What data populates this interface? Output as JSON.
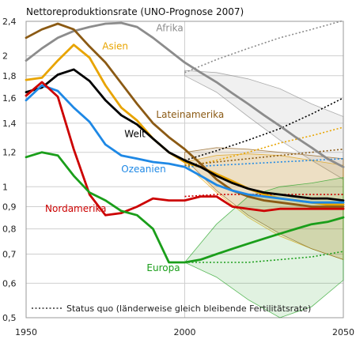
{
  "chart_data": {
    "type": "line",
    "title": "Nettoreproduktionsrate (UNO-Prognose 2007)",
    "xlabel": "",
    "ylabel": "",
    "y_scale": "log",
    "xlim": [
      1950,
      2050
    ],
    "ylim": [
      0.5,
      2.4
    ],
    "grid": true,
    "x_ticks": [
      1950,
      2000,
      2050
    ],
    "x_tick_labels": [
      "1950",
      "2000",
      "2050"
    ],
    "y_ticks": [
      0.5,
      0.6,
      0.7,
      0.8,
      0.9,
      1,
      1.2,
      1.4,
      1.6,
      1.8,
      2,
      2.4
    ],
    "y_tick_labels": [
      "0,5",
      "0,6",
      "0,7",
      "0,8",
      "0,9",
      "1",
      "1,2",
      "1,4",
      "1,6",
      "1,8",
      "2",
      "2,4"
    ],
    "legend_text": "Status quo (länderweise gleich bleibende Fertilitätsrate)",
    "series": [
      {
        "name": "Afrika",
        "color": "#8c8c8c",
        "x": [
          1950,
          1955,
          1960,
          1965,
          1970,
          1975,
          1980,
          1985,
          1990,
          1995,
          2000,
          2005,
          2010,
          2015,
          2020,
          2025,
          2030,
          2035,
          2040,
          2045,
          2050
        ],
        "y": [
          1.95,
          2.08,
          2.2,
          2.28,
          2.33,
          2.37,
          2.38,
          2.33,
          2.2,
          2.06,
          1.93,
          1.83,
          1.74,
          1.64,
          1.55,
          1.46,
          1.38,
          1.3,
          1.23,
          1.16,
          1.11
        ],
        "status_quo": {
          "x": [
            2000,
            2010,
            2020,
            2030,
            2040,
            2050
          ],
          "y": [
            1.83,
            1.96,
            2.08,
            2.2,
            2.3,
            2.41
          ]
        },
        "band": {
          "x": [
            2000,
            2010,
            2020,
            2030,
            2040,
            2050
          ],
          "high": [
            1.85,
            1.83,
            1.77,
            1.68,
            1.55,
            1.45
          ],
          "low": [
            1.8,
            1.65,
            1.45,
            1.28,
            1.15,
            1.04
          ]
        }
      },
      {
        "name": "Asien",
        "color": "#e8a400",
        "x": [
          1950,
          1955,
          1960,
          1965,
          1970,
          1975,
          1980,
          1985,
          1990,
          1995,
          2000,
          2005,
          2010,
          2015,
          2020,
          2025,
          2030,
          2035,
          2040,
          2045,
          2050
        ],
        "y": [
          1.76,
          1.78,
          1.95,
          2.12,
          1.98,
          1.71,
          1.52,
          1.42,
          1.29,
          1.2,
          1.14,
          1.11,
          1.07,
          1.03,
          0.99,
          0.96,
          0.94,
          0.93,
          0.92,
          0.91,
          0.91
        ],
        "status_quo": {
          "x": [
            2000,
            2010,
            2020,
            2030,
            2040,
            2050
          ],
          "y": [
            1.11,
            1.15,
            1.2,
            1.26,
            1.31,
            1.37
          ]
        },
        "band": {
          "x": [
            2000,
            2010,
            2020,
            2030,
            2040,
            2050
          ],
          "high": [
            1.14,
            1.18,
            1.19,
            1.18,
            1.15,
            1.12
          ],
          "low": [
            1.13,
            0.97,
            0.85,
            0.77,
            0.72,
            0.68
          ]
        }
      },
      {
        "name": "Lateinamerika",
        "color": "#8b5a14",
        "x": [
          1950,
          1955,
          1960,
          1965,
          1970,
          1975,
          1980,
          1985,
          1990,
          1995,
          2000,
          2005,
          2010,
          2015,
          2020,
          2025,
          2030,
          2035,
          2040,
          2045,
          2050
        ],
        "y": [
          2.2,
          2.3,
          2.37,
          2.3,
          2.1,
          1.93,
          1.73,
          1.55,
          1.4,
          1.3,
          1.22,
          1.13,
          1.04,
          0.98,
          0.95,
          0.93,
          0.92,
          0.91,
          0.9,
          0.9,
          0.9
        ],
        "status_quo": {
          "x": [
            2000,
            2010,
            2020,
            2030,
            2040,
            2050
          ],
          "y": [
            1.12,
            1.14,
            1.16,
            1.18,
            1.2,
            1.22
          ]
        },
        "band": {
          "x": [
            2000,
            2010,
            2020,
            2030,
            2040,
            2050
          ],
          "high": [
            1.2,
            1.23,
            1.22,
            1.2,
            1.18,
            1.16
          ],
          "low": [
            1.16,
            0.98,
            0.86,
            0.78,
            0.72,
            0.68
          ]
        }
      },
      {
        "name": "Welt",
        "color": "#000000",
        "x": [
          1950,
          1955,
          1960,
          1965,
          1970,
          1975,
          1980,
          1985,
          1990,
          1995,
          2000,
          2005,
          2010,
          2015,
          2020,
          2025,
          2030,
          2035,
          2040,
          2045,
          2050
        ],
        "y": [
          1.65,
          1.69,
          1.81,
          1.86,
          1.75,
          1.58,
          1.46,
          1.39,
          1.29,
          1.2,
          1.15,
          1.11,
          1.06,
          1.02,
          0.99,
          0.97,
          0.96,
          0.95,
          0.94,
          0.94,
          0.93
        ],
        "status_quo": {
          "x": [
            2000,
            2010,
            2020,
            2030,
            2040,
            2050
          ],
          "y": [
            1.15,
            1.21,
            1.28,
            1.36,
            1.47,
            1.6
          ]
        }
      },
      {
        "name": "Ozeanien",
        "color": "#1e88e5",
        "x": [
          1950,
          1955,
          1960,
          1965,
          1970,
          1975,
          1980,
          1985,
          1990,
          1995,
          2000,
          2005,
          2010,
          2015,
          2020,
          2025,
          2030,
          2035,
          2040,
          2045,
          2050
        ],
        "y": [
          1.58,
          1.71,
          1.66,
          1.52,
          1.41,
          1.25,
          1.18,
          1.16,
          1.14,
          1.13,
          1.11,
          1.06,
          1.01,
          0.98,
          0.96,
          0.95,
          0.94,
          0.93,
          0.92,
          0.92,
          0.92
        ],
        "status_quo": {
          "x": [
            2000,
            2010,
            2020,
            2030,
            2040,
            2050
          ],
          "y": [
            1.11,
            1.12,
            1.13,
            1.14,
            1.15,
            1.16
          ]
        }
      },
      {
        "name": "Nordamerika",
        "color": "#cc0000",
        "x": [
          1950,
          1955,
          1960,
          1965,
          1970,
          1975,
          1980,
          1985,
          1990,
          1995,
          2000,
          2005,
          2010,
          2015,
          2020,
          2025,
          2030,
          2035,
          2040,
          2045,
          2050
        ],
        "y": [
          1.62,
          1.74,
          1.61,
          1.22,
          0.96,
          0.86,
          0.87,
          0.9,
          0.94,
          0.93,
          0.93,
          0.95,
          0.95,
          0.9,
          0.89,
          0.88,
          0.89,
          0.89,
          0.89,
          0.89,
          0.89
        ],
        "status_quo": {
          "x": [
            2000,
            2010,
            2020,
            2030,
            2040,
            2050
          ],
          "y": [
            0.95,
            0.96,
            0.96,
            0.96,
            0.96,
            0.96
          ]
        }
      },
      {
        "name": "Europa",
        "color": "#1a9e1a",
        "x": [
          1950,
          1955,
          1960,
          1965,
          1970,
          1975,
          1980,
          1985,
          1990,
          1995,
          2000,
          2005,
          2010,
          2015,
          2020,
          2025,
          2030,
          2035,
          2040,
          2045,
          2050
        ],
        "y": [
          1.17,
          1.2,
          1.18,
          1.06,
          0.97,
          0.93,
          0.88,
          0.86,
          0.8,
          0.67,
          0.67,
          0.68,
          0.7,
          0.72,
          0.74,
          0.76,
          0.78,
          0.8,
          0.82,
          0.83,
          0.85
        ],
        "status_quo": {
          "x": [
            2000,
            2010,
            2020,
            2030,
            2040,
            2050
          ],
          "y": [
            0.67,
            0.67,
            0.67,
            0.68,
            0.69,
            0.71
          ]
        },
        "band": {
          "x": [
            2000,
            2010,
            2020,
            2030,
            2040,
            2050
          ],
          "high": [
            0.67,
            0.82,
            0.95,
            1.0,
            1.02,
            1.05
          ],
          "low": [
            0.67,
            0.62,
            0.55,
            0.5,
            0.53,
            0.61
          ]
        }
      }
    ],
    "labels": [
      {
        "text": "Afrika",
        "series": "Afrika",
        "x": 1991,
        "y": 2.28
      },
      {
        "text": "Asien",
        "series": "Asien",
        "x": 1974,
        "y": 2.07
      },
      {
        "text": "Lateinamerika",
        "series": "Lateinamerika",
        "x": 1991,
        "y": 1.44
      },
      {
        "text": "Welt",
        "series": "Welt",
        "x": 1981,
        "y": 1.3
      },
      {
        "text": "Ozeanien",
        "series": "Ozeanien",
        "x": 1980,
        "y": 1.08
      },
      {
        "text": "Nordamerika",
        "series": "Nordamerika",
        "x": 1956,
        "y": 0.875
      },
      {
        "text": "Europa",
        "series": "Europa",
        "x": 1988,
        "y": 0.64
      }
    ]
  }
}
